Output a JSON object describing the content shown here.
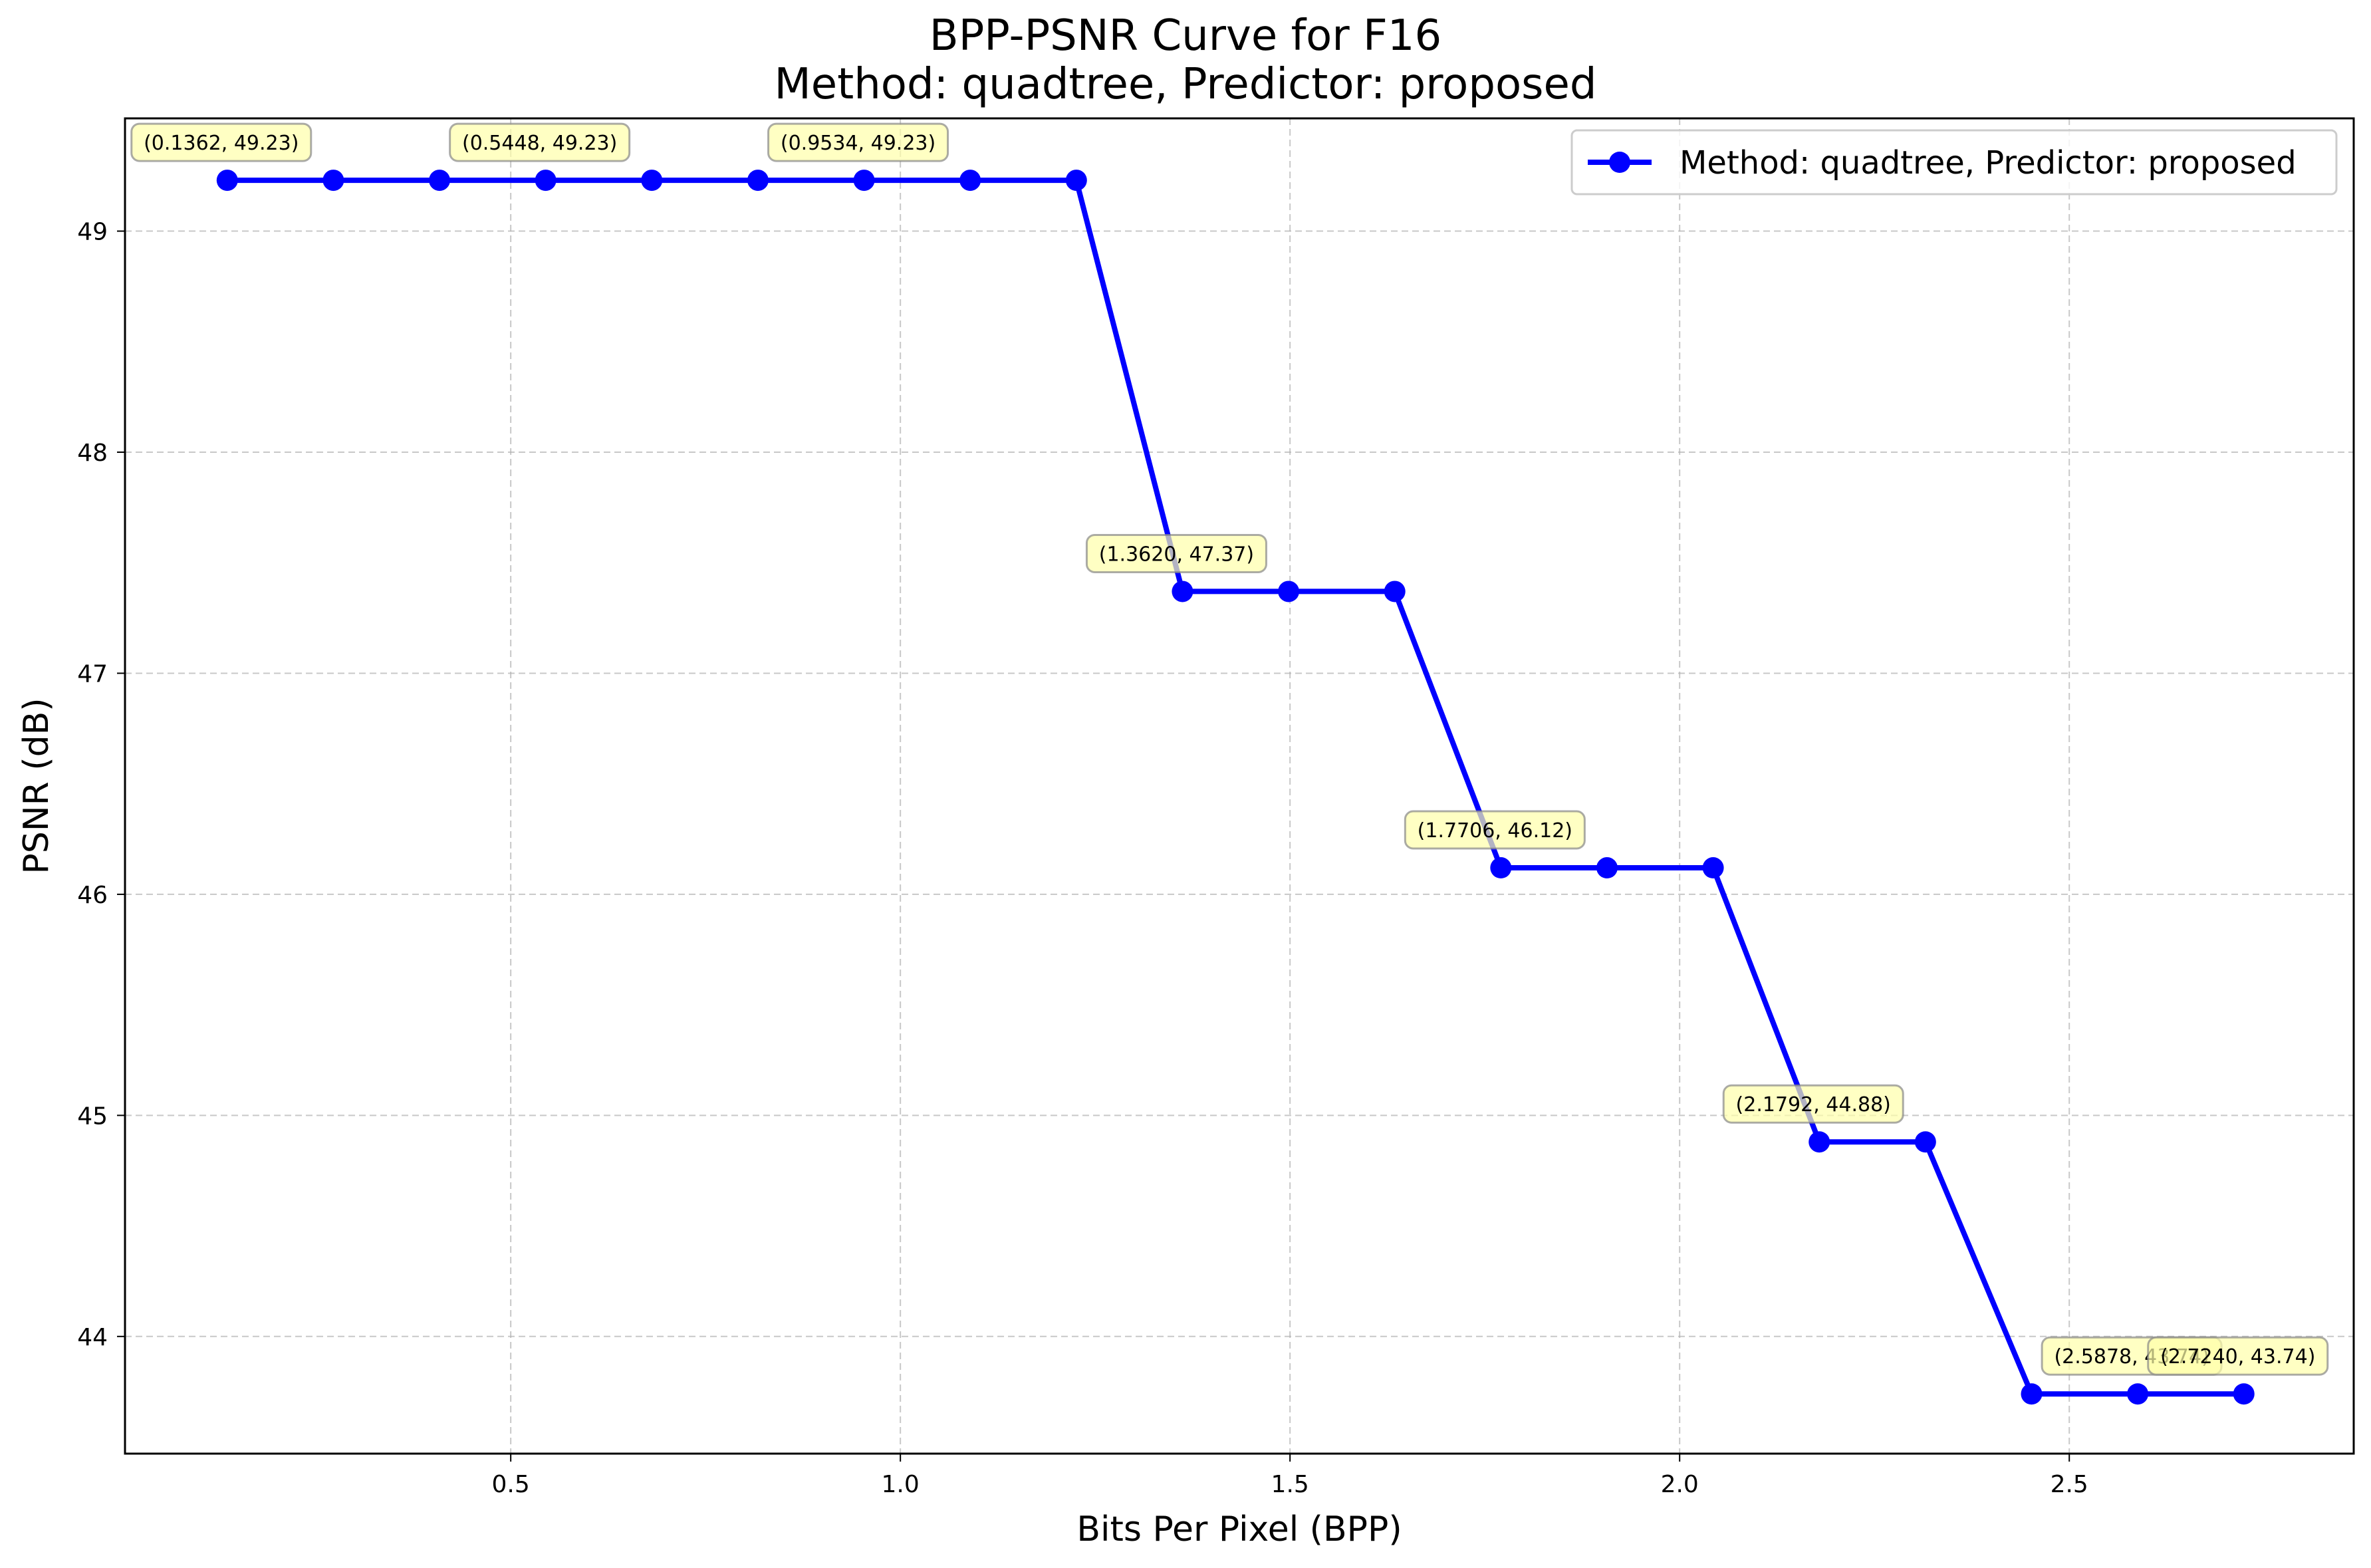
{
  "chart_data": {
    "type": "line",
    "title": "BPP-PSNR Curve for F16",
    "subtitle": "Method: quadtree, Predictor: proposed",
    "xlabel": "Bits Per Pixel (BPP)",
    "ylabel": "PSNR (dB)",
    "xlim": [
      0.005,
      2.865
    ],
    "ylim": [
      43.47,
      49.51
    ],
    "xticks": [
      0.5,
      1.0,
      1.5,
      2.0,
      2.5
    ],
    "xtick_labels": [
      "0.5",
      "1.0",
      "1.5",
      "2.0",
      "2.5"
    ],
    "yticks": [
      44,
      45,
      46,
      47,
      48,
      49
    ],
    "ytick_labels": [
      "44",
      "45",
      "46",
      "47",
      "48",
      "49"
    ],
    "grid": true,
    "legend_position": "top-right",
    "series": [
      {
        "name": "Method: quadtree, Predictor: proposed",
        "color": "#0000ff",
        "x": [
          0.1362,
          0.2724,
          0.4086,
          0.5448,
          0.681,
          0.8172,
          0.9534,
          1.0896,
          1.2258,
          1.362,
          1.4982,
          1.6344,
          1.7706,
          1.9068,
          2.043,
          2.1792,
          2.3154,
          2.4516,
          2.5878,
          2.724
        ],
        "y": [
          49.23,
          49.23,
          49.23,
          49.23,
          49.23,
          49.23,
          49.23,
          49.23,
          49.23,
          47.37,
          47.37,
          47.37,
          46.12,
          46.12,
          46.12,
          44.88,
          44.88,
          43.74,
          43.74,
          43.74
        ]
      }
    ],
    "annotations": [
      {
        "x": 0.1362,
        "y": 49.23,
        "text": "(0.1362, 49.23)"
      },
      {
        "x": 0.5448,
        "y": 49.23,
        "text": "(0.5448, 49.23)"
      },
      {
        "x": 0.9534,
        "y": 49.23,
        "text": "(0.9534, 49.23)"
      },
      {
        "x": 1.362,
        "y": 47.37,
        "text": "(1.3620, 47.37)"
      },
      {
        "x": 1.7706,
        "y": 46.12,
        "text": "(1.7706, 46.12)"
      },
      {
        "x": 2.1792,
        "y": 44.88,
        "text": "(2.1792, 44.88)"
      },
      {
        "x": 2.5878,
        "y": 43.74,
        "text": "(2.5878, 43.74)"
      },
      {
        "x": 2.724,
        "y": 43.74,
        "text": "(2.7240, 43.74)"
      }
    ],
    "annotation_box_color": "#ffffaa"
  }
}
